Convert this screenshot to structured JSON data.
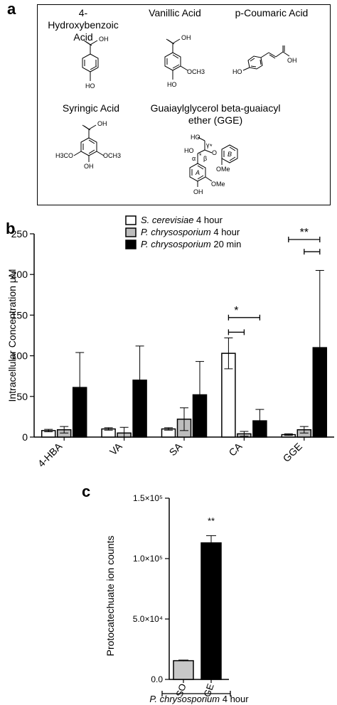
{
  "panels": {
    "a": "a",
    "b": "b",
    "c": "c"
  },
  "structures": {
    "hba": {
      "name": "4-Hydroxybenzoic Acid",
      "oh_top": "OH",
      "oh_bottom": "HO"
    },
    "va": {
      "name": "Vanillic Acid",
      "oh_top": "OH",
      "oh_bottom": "HO",
      "ome": "OCH3"
    },
    "ca": {
      "name": "p-Coumaric Acid",
      "oh_right": "OH",
      "oh_left": "HO"
    },
    "sa": {
      "name": "Syringic Acid",
      "oh_top": "OH",
      "oh_bottom": "OH",
      "ome_left": "H3CO",
      "ome_right": "OCH3"
    },
    "gge": {
      "name": "Guaiaylglycerol beta-guaiacyl ether (GGE)",
      "ho_top": "HO",
      "ho_left": "HO",
      "gamma": "γ",
      "alpha": "α",
      "beta": "β",
      "star1": "*",
      "star2": "*",
      "ring_a": "A",
      "ring_b": "B",
      "ome_b": "OMe",
      "ome_a": "OMe",
      "oh_bottom": "OH",
      "o_ether": "O"
    }
  },
  "chart_data": [
    {
      "type": "bar",
      "ylabel": "Intracellular Concentration μM",
      "ylim": [
        0,
        250
      ],
      "yticks": [
        0,
        50,
        100,
        150,
        200,
        250
      ],
      "categories": [
        "4-HBA",
        "VA",
        "SA",
        "CA",
        "GGE"
      ],
      "series": [
        {
          "name": "S. cerevisiae 4 hour",
          "name_italic": "S. cerevisiae",
          "name_suffix": " 4 hour",
          "color": "#ffffff",
          "values": [
            8,
            10,
            10,
            103,
            3
          ],
          "errors": [
            1.5,
            1.5,
            1.5,
            19,
            1
          ]
        },
        {
          "name": "P. chrysosporium 4 hour",
          "name_italic": "P. chrysosporium",
          "name_suffix": " 4 hour",
          "color": "#bdbdbd",
          "values": [
            9,
            5,
            22,
            4,
            9
          ],
          "errors": [
            4,
            7,
            14,
            3,
            4
          ]
        },
        {
          "name": "P. chrysosporium 20 min",
          "name_italic": "P. chrysosporium",
          "name_suffix": " 20 min",
          "color": "#000000",
          "values": [
            61,
            70,
            52,
            20,
            110
          ],
          "errors": [
            43,
            42,
            41,
            14,
            95
          ]
        }
      ],
      "significance": [
        {
          "label": "*",
          "category": "CA"
        },
        {
          "label": "**",
          "category": "GGE"
        }
      ]
    },
    {
      "type": "bar",
      "ylabel": "Protocatechuate ion counts",
      "ylim": [
        0,
        150000
      ],
      "ytick_labels": [
        "0.0",
        "5.0×10⁴",
        "1.0×10⁵",
        "1.5×10⁵"
      ],
      "categories": [
        "DMSO",
        "GGE"
      ],
      "values": [
        15500,
        113000
      ],
      "errors": [
        500,
        6000
      ],
      "colors": [
        "#c8c8c8",
        "#000000"
      ],
      "significance": "**",
      "group_label": "P. chrysosporium 4 hour",
      "group_label_italic": "P. chrysosporium",
      "group_label_suffix": " 4 hour"
    }
  ]
}
